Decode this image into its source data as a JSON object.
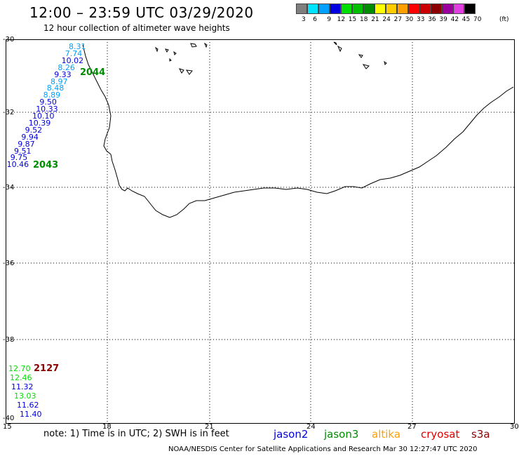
{
  "header": {
    "title": "12:00 – 23:59 UTC 03/29/2020",
    "subtitle": "12 hour collection of altimeter wave heights"
  },
  "legend": {
    "unit": "(ft)",
    "values": [
      "3",
      "6",
      "9",
      "12",
      "15",
      "18",
      "21",
      "24",
      "27",
      "30",
      "33",
      "36",
      "39",
      "42",
      "45",
      "70"
    ],
    "colors": [
      "#7f7f7f",
      "#00e5ff",
      "#00a0ff",
      "#0000e0",
      "#00e000",
      "#00bf00",
      "#008c00",
      "#ffff00",
      "#ffcc00",
      "#ffa000",
      "#ff0000",
      "#cc0000",
      "#8c0000",
      "#9c009c",
      "#e040e0",
      "#000000"
    ]
  },
  "axes": {
    "lat_labels": [
      "-30",
      "-32",
      "-34",
      "-36",
      "-38",
      "-40"
    ],
    "lon_labels": [
      "15",
      "18",
      "21",
      "24",
      "27",
      "30"
    ]
  },
  "tracks": [
    {
      "time": "2044",
      "time_color": "#008c00",
      "readings": [
        {
          "value": "8.31",
          "color": "#00a0ff"
        },
        {
          "value": "7.74",
          "color": "#00a0ff"
        },
        {
          "value": "10.02",
          "color": "#0000e0"
        },
        {
          "value": "8.26",
          "color": "#00a0ff"
        },
        {
          "value": "9.33",
          "color": "#0000e0"
        },
        {
          "value": "8.97",
          "color": "#00a0ff"
        },
        {
          "value": "8.48",
          "color": "#00a0ff"
        },
        {
          "value": "8.89",
          "color": "#00a0ff"
        },
        {
          "value": "9.50",
          "color": "#0000e0"
        },
        {
          "value": "10.33",
          "color": "#0000e0"
        },
        {
          "value": "10.10",
          "color": "#0000e0"
        },
        {
          "value": "10.39",
          "color": "#0000e0"
        },
        {
          "value": "9.52",
          "color": "#0000e0"
        },
        {
          "value": "9.94",
          "color": "#0000e0"
        },
        {
          "value": "9.87",
          "color": "#0000e0"
        },
        {
          "value": "9.51",
          "color": "#0000e0"
        },
        {
          "value": "9.75",
          "color": "#0000e0"
        },
        {
          "value": "10.46",
          "color": "#0000e0"
        }
      ],
      "end_time": "2043",
      "end_time_color": "#008c00"
    },
    {
      "time": "2127",
      "time_color": "#8c0000",
      "readings": [
        {
          "value": "12.70",
          "color": "#00e000"
        },
        {
          "value": "12.46",
          "color": "#00e000"
        },
        {
          "value": "11.32",
          "color": "#0000e0"
        },
        {
          "value": "13.03",
          "color": "#00e000"
        },
        {
          "value": "11.62",
          "color": "#0000e0"
        },
        {
          "value": "11.40",
          "color": "#0000e0"
        }
      ]
    }
  ],
  "note": "note: 1) Time is in UTC; 2) SWH is in feet",
  "satellites": [
    {
      "name": "jason2",
      "color": "#0000e0"
    },
    {
      "name": "jason3",
      "color": "#008c00"
    },
    {
      "name": "altika",
      "color": "#ffa000"
    },
    {
      "name": "cryosat",
      "color": "#e00000"
    },
    {
      "name": "s3a",
      "color": "#8c0000"
    }
  ],
  "footer": "NOAA/NESDIS Center for Satellite Applications and Research     Mar 30 12:27:47 UTC 2020"
}
